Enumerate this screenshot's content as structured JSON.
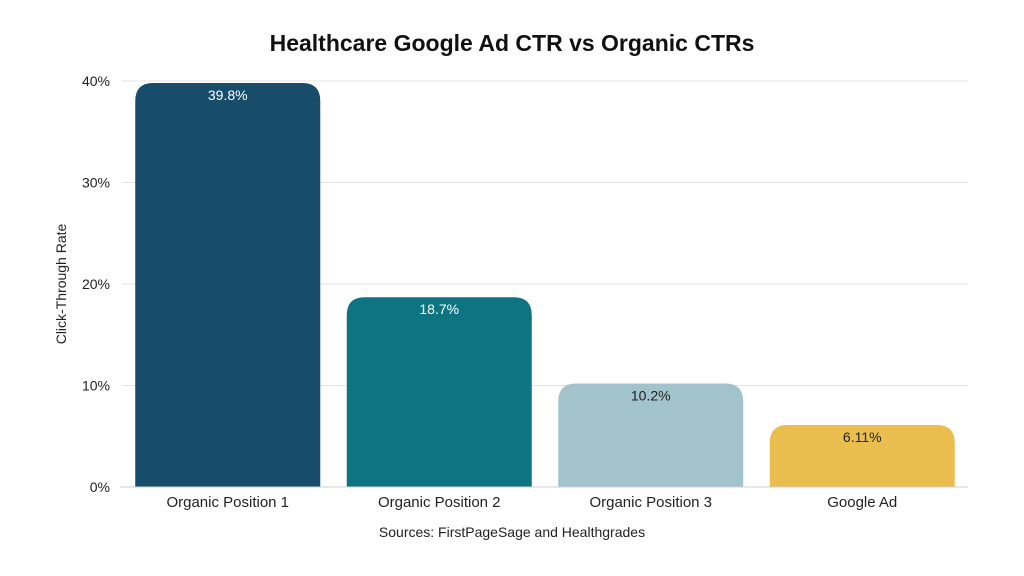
{
  "chart_data": {
    "type": "bar",
    "title": "Healthcare Google Ad CTR vs Organic CTRs",
    "ylabel": "Click-Through Rate",
    "xlabel": "",
    "categories": [
      "Organic Position 1",
      "Organic Position 2",
      "Organic Position 3",
      "Google Ad"
    ],
    "values": [
      39.8,
      18.7,
      10.2,
      6.11
    ],
    "data_labels": [
      "39.8%",
      "18.7%",
      "10.2%",
      "6.11%"
    ],
    "bar_colors": [
      "#174d6a",
      "#0f7481",
      "#a3c3cc",
      "#e9be4e"
    ],
    "label_colors": [
      "#ffffff",
      "#ffffff",
      "#222222",
      "#222222"
    ],
    "ylim": [
      0,
      40
    ],
    "yticks": [
      0,
      10,
      20,
      30,
      40
    ],
    "ytick_labels": [
      "0%",
      "10%",
      "20%",
      "30%",
      "40%"
    ],
    "grid": true,
    "source": "Sources: FirstPageSage and Healthgrades"
  }
}
